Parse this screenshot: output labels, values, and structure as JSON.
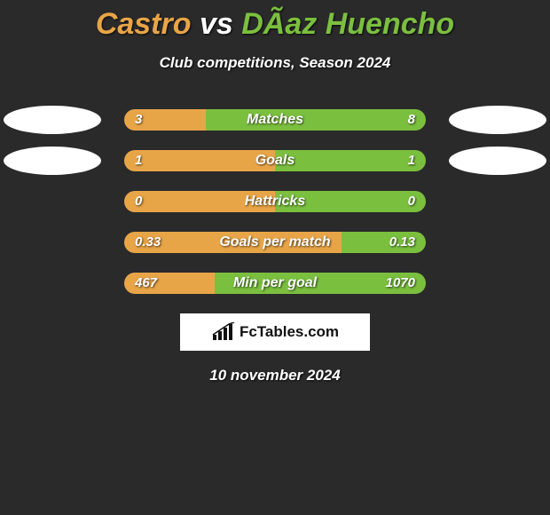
{
  "title_html": "<span style='color:#e8a548'>Castro</span> <span style='color:#ffffff'>vs</span> <span style='color:#7bbf3f'>DÃ­az Huencho</span>",
  "subtitle": "Club competitions, Season 2024",
  "colors": {
    "left": "#e8a548",
    "right": "#7bbf3f",
    "background": "#2a2a2a",
    "avatar": "#ffffff"
  },
  "avatar_rows": [
    0,
    1
  ],
  "track_width": 340,
  "rows": [
    {
      "metric": "Matches",
      "left_val": "3",
      "right_val": "8",
      "left_pct": 27,
      "right_pct": 73
    },
    {
      "metric": "Goals",
      "left_val": "1",
      "right_val": "1",
      "left_pct": 50,
      "right_pct": 50
    },
    {
      "metric": "Hattricks",
      "left_val": "0",
      "right_val": "0",
      "left_pct": 50,
      "right_pct": 50
    },
    {
      "metric": "Goals per match",
      "left_val": "0.33",
      "right_val": "0.13",
      "left_pct": 72,
      "right_pct": 28
    },
    {
      "metric": "Min per goal",
      "left_val": "467",
      "right_val": "1070",
      "left_pct": 30,
      "right_pct": 70
    }
  ],
  "logo_text": "FcTables.com",
  "date_text": "10 november 2024"
}
